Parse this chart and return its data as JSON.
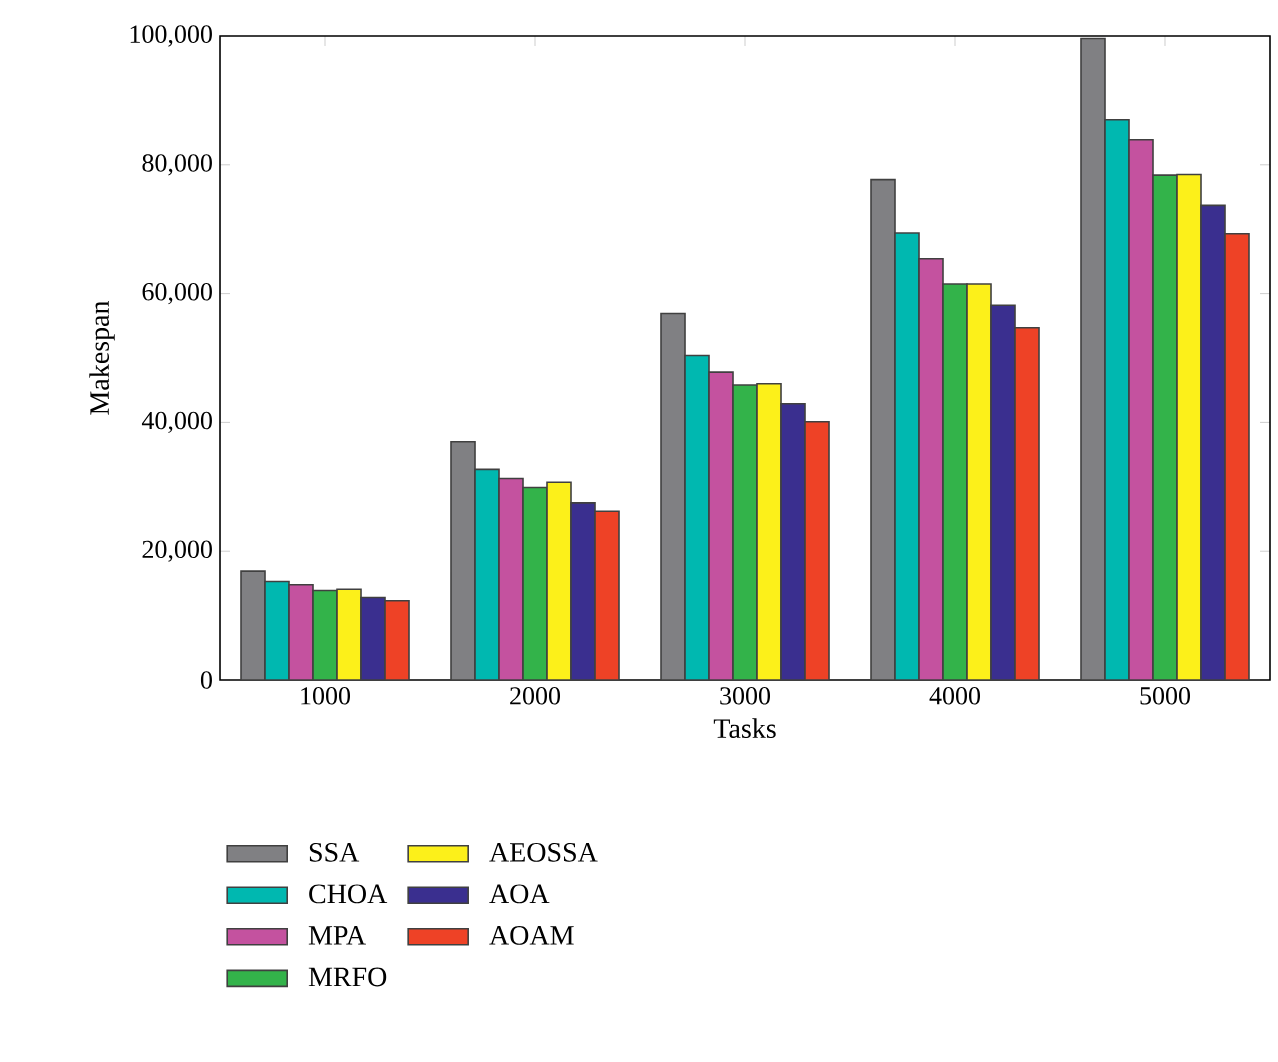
{
  "chart_data": {
    "type": "bar",
    "xlabel": "Tasks",
    "ylabel": "Makespan",
    "categories": [
      "1000",
      "2000",
      "3000",
      "4000",
      "5000"
    ],
    "ylim": [
      0,
      100000
    ],
    "yticks": [
      0,
      {
        "value": 20000,
        "label": "20,000"
      },
      {
        "value": 40000,
        "label": "40,000"
      },
      {
        "value": 60000,
        "label": "60,000"
      },
      {
        "value": 80000,
        "label": "80,000"
      },
      {
        "value": 100000,
        "label": "100,000"
      }
    ],
    "legend": "bottom",
    "grid": false,
    "series": [
      {
        "name": "SSA",
        "color": "#808083",
        "values": [
          16900,
          37000,
          56900,
          77700,
          99600
        ]
      },
      {
        "name": "CHOA",
        "color": "#00b8b0",
        "values": [
          15300,
          32700,
          50400,
          69400,
          87000
        ]
      },
      {
        "name": "MPA",
        "color": "#c4529f",
        "values": [
          14800,
          31300,
          47800,
          65400,
          83900
        ]
      },
      {
        "name": "MRFO",
        "color": "#33b34a",
        "values": [
          13900,
          29900,
          45800,
          61500,
          78400
        ]
      },
      {
        "name": "AEOSSA",
        "color": "#fcf01a",
        "values": [
          14100,
          30700,
          46000,
          61500,
          78500
        ]
      },
      {
        "name": "AOA",
        "color": "#3a2f8f",
        "values": [
          12800,
          27500,
          42900,
          58200,
          73700
        ]
      },
      {
        "name": "AOAM",
        "color": "#ee4226",
        "values": [
          12300,
          26200,
          40100,
          54700,
          69300
        ]
      }
    ]
  }
}
